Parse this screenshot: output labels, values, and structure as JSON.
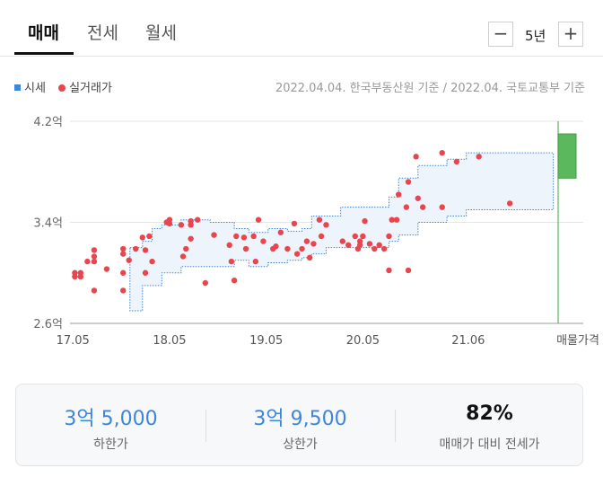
{
  "tabs": [
    "매매",
    "전세",
    "월세"
  ],
  "period": {
    "label": "5년",
    "minus": "−",
    "plus": "+"
  },
  "legend": {
    "market": "시세",
    "actual": "실거래가"
  },
  "source": "2022.04.04. 한국부동산원 기준 / 2022.04. 국토교통부 기준",
  "colors": {
    "accent": "#3d86d9",
    "dot": "#e8464f",
    "listing": "#5cb85c",
    "band": "#eef4fb"
  },
  "chart_data": {
    "type": "scatter",
    "y_tick_labels": [
      "4.2억",
      "3.4억",
      "2.6억"
    ],
    "y_ticks": [
      4.2,
      3.4,
      2.6
    ],
    "ylim": [
      2.6,
      4.2
    ],
    "x_tick_labels": [
      "17.05",
      "18.05",
      "19.05",
      "20.05",
      "21.06",
      "매물가격"
    ],
    "xlim": [
      2017.3,
      2022.35
    ],
    "x_ticks": [
      2017.33,
      2018.33,
      2019.33,
      2020.33,
      2021.42
    ],
    "listing_price": {
      "low": 3.75,
      "high": 4.1
    },
    "band": [
      {
        "x": 2017.92,
        "low": 2.7,
        "high": 3.2
      },
      {
        "x": 2017.96,
        "low": 2.7,
        "high": 3.2
      },
      {
        "x": 2018.05,
        "low": 2.9,
        "high": 3.25
      },
      {
        "x": 2018.15,
        "low": 2.9,
        "high": 3.35
      },
      {
        "x": 2018.25,
        "low": 3.0,
        "high": 3.38
      },
      {
        "x": 2018.45,
        "low": 3.05,
        "high": 3.42
      },
      {
        "x": 2018.75,
        "low": 3.05,
        "high": 3.4
      },
      {
        "x": 2019.0,
        "low": 3.1,
        "high": 3.35
      },
      {
        "x": 2019.15,
        "low": 3.05,
        "high": 3.32
      },
      {
        "x": 2019.35,
        "low": 3.08,
        "high": 3.35
      },
      {
        "x": 2019.55,
        "low": 3.1,
        "high": 3.33
      },
      {
        "x": 2019.7,
        "low": 3.12,
        "high": 3.35
      },
      {
        "x": 2019.8,
        "low": 3.15,
        "high": 3.45
      },
      {
        "x": 2019.95,
        "low": 3.2,
        "high": 3.45
      },
      {
        "x": 2020.1,
        "low": 3.2,
        "high": 3.52
      },
      {
        "x": 2020.35,
        "low": 3.2,
        "high": 3.52
      },
      {
        "x": 2020.6,
        "low": 3.25,
        "high": 3.6
      },
      {
        "x": 2020.7,
        "low": 3.3,
        "high": 3.75
      },
      {
        "x": 2020.9,
        "low": 3.4,
        "high": 3.85
      },
      {
        "x": 2021.2,
        "low": 3.45,
        "high": 3.9
      },
      {
        "x": 2021.4,
        "low": 3.5,
        "high": 3.95
      },
      {
        "x": 2021.6,
        "low": 3.5,
        "high": 3.95
      },
      {
        "x": 2022.3,
        "low": 3.5,
        "high": 3.95
      }
    ],
    "points": [
      {
        "x": 2017.35,
        "y": 3.0
      },
      {
        "x": 2017.35,
        "y": 2.97
      },
      {
        "x": 2017.41,
        "y": 2.97
      },
      {
        "x": 2017.41,
        "y": 3.0
      },
      {
        "x": 2017.48,
        "y": 3.09
      },
      {
        "x": 2017.55,
        "y": 3.18
      },
      {
        "x": 2017.55,
        "y": 3.13
      },
      {
        "x": 2017.55,
        "y": 3.09
      },
      {
        "x": 2017.55,
        "y": 2.86
      },
      {
        "x": 2017.68,
        "y": 3.03
      },
      {
        "x": 2017.85,
        "y": 3.0
      },
      {
        "x": 2017.85,
        "y": 3.15
      },
      {
        "x": 2017.85,
        "y": 3.19
      },
      {
        "x": 2017.85,
        "y": 2.86
      },
      {
        "x": 2017.91,
        "y": 3.1
      },
      {
        "x": 2017.98,
        "y": 3.19
      },
      {
        "x": 2018.05,
        "y": 3.28
      },
      {
        "x": 2018.08,
        "y": 3.18
      },
      {
        "x": 2018.12,
        "y": 3.29
      },
      {
        "x": 2018.08,
        "y": 3.0
      },
      {
        "x": 2018.15,
        "y": 3.09
      },
      {
        "x": 2018.3,
        "y": 3.4
      },
      {
        "x": 2018.33,
        "y": 3.42
      },
      {
        "x": 2018.33,
        "y": 3.39
      },
      {
        "x": 2018.45,
        "y": 3.38
      },
      {
        "x": 2018.47,
        "y": 3.13
      },
      {
        "x": 2018.5,
        "y": 3.19
      },
      {
        "x": 2018.55,
        "y": 3.41
      },
      {
        "x": 2018.55,
        "y": 3.38
      },
      {
        "x": 2018.55,
        "y": 3.27
      },
      {
        "x": 2018.62,
        "y": 3.42
      },
      {
        "x": 2018.7,
        "y": 2.92
      },
      {
        "x": 2018.79,
        "y": 3.3
      },
      {
        "x": 2018.95,
        "y": 3.22
      },
      {
        "x": 2018.97,
        "y": 3.09
      },
      {
        "x": 2019.0,
        "y": 2.94
      },
      {
        "x": 2019.02,
        "y": 3.29
      },
      {
        "x": 2019.1,
        "y": 3.28
      },
      {
        "x": 2019.12,
        "y": 3.19
      },
      {
        "x": 2019.2,
        "y": 3.29
      },
      {
        "x": 2019.25,
        "y": 3.42
      },
      {
        "x": 2019.22,
        "y": 3.09
      },
      {
        "x": 2019.3,
        "y": 3.25
      },
      {
        "x": 2019.4,
        "y": 3.19
      },
      {
        "x": 2019.43,
        "y": 3.21
      },
      {
        "x": 2019.48,
        "y": 3.32
      },
      {
        "x": 2019.55,
        "y": 3.19
      },
      {
        "x": 2019.62,
        "y": 3.39
      },
      {
        "x": 2019.65,
        "y": 3.15
      },
      {
        "x": 2019.7,
        "y": 3.19
      },
      {
        "x": 2019.75,
        "y": 3.25
      },
      {
        "x": 2019.78,
        "y": 3.12
      },
      {
        "x": 2019.82,
        "y": 3.23
      },
      {
        "x": 2019.88,
        "y": 3.42
      },
      {
        "x": 2019.9,
        "y": 3.29
      },
      {
        "x": 2019.95,
        "y": 3.38
      },
      {
        "x": 2020.12,
        "y": 3.25
      },
      {
        "x": 2020.18,
        "y": 3.22
      },
      {
        "x": 2020.25,
        "y": 3.29
      },
      {
        "x": 2020.28,
        "y": 3.19
      },
      {
        "x": 2020.3,
        "y": 3.25
      },
      {
        "x": 2020.3,
        "y": 3.22
      },
      {
        "x": 2020.33,
        "y": 3.29
      },
      {
        "x": 2020.35,
        "y": 3.41
      },
      {
        "x": 2020.4,
        "y": 3.23
      },
      {
        "x": 2020.45,
        "y": 3.19
      },
      {
        "x": 2020.5,
        "y": 3.22
      },
      {
        "x": 2020.55,
        "y": 3.19
      },
      {
        "x": 2020.6,
        "y": 3.29
      },
      {
        "x": 2020.6,
        "y": 3.02
      },
      {
        "x": 2020.63,
        "y": 3.42
      },
      {
        "x": 2020.68,
        "y": 3.42
      },
      {
        "x": 2020.7,
        "y": 3.62
      },
      {
        "x": 2020.78,
        "y": 3.52
      },
      {
        "x": 2020.8,
        "y": 3.02
      },
      {
        "x": 2020.8,
        "y": 3.72
      },
      {
        "x": 2020.88,
        "y": 3.92
      },
      {
        "x": 2020.9,
        "y": 3.59
      },
      {
        "x": 2020.95,
        "y": 3.52
      },
      {
        "x": 2021.15,
        "y": 3.52
      },
      {
        "x": 2021.15,
        "y": 3.95
      },
      {
        "x": 2021.3,
        "y": 3.88
      },
      {
        "x": 2021.53,
        "y": 3.92
      },
      {
        "x": 2021.85,
        "y": 3.55
      }
    ]
  },
  "summary": [
    {
      "value": "3억 5,000",
      "label": "하한가"
    },
    {
      "value": "3억 9,500",
      "label": "상한가"
    },
    {
      "value": "82%",
      "label": "매매가 대비 전세가"
    }
  ]
}
